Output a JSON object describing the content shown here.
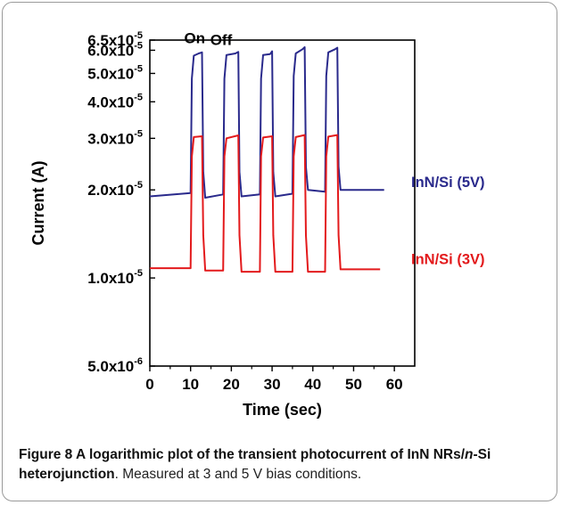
{
  "chart_data": {
    "type": "line",
    "xlabel": "Time (sec)",
    "ylabel": "Current (A)",
    "xlim": [
      0,
      65
    ],
    "ylim": [
      5e-06,
      6.5e-05
    ],
    "yscale": "log",
    "x_ticks": [
      0,
      10,
      20,
      30,
      40,
      50,
      60
    ],
    "y_ticks": [
      {
        "value": 5e-06,
        "mant": "5.0x10",
        "exp": "-6"
      },
      {
        "value": 1e-05,
        "mant": "1.0x10",
        "exp": "-5"
      },
      {
        "value": 2e-05,
        "mant": "2.0x10",
        "exp": "-5"
      },
      {
        "value": 3e-05,
        "mant": "3.0x10",
        "exp": "-5"
      },
      {
        "value": 4e-05,
        "mant": "4.0x10",
        "exp": "-5"
      },
      {
        "value": 5e-05,
        "mant": "5.0x10",
        "exp": "-5"
      },
      {
        "value": 6e-05,
        "mant": "6.0x10",
        "exp": "-5"
      },
      {
        "value": 6.5e-05,
        "mant": "6.5x10",
        "exp": "-5"
      }
    ],
    "annotations": [
      {
        "text": "On",
        "x": 11.0,
        "y": 6.35e-05
      },
      {
        "text": "Off",
        "x": 17.5,
        "y": 6.25e-05
      }
    ],
    "series": [
      {
        "name": "InN/Si (5V)",
        "color": "#2a2a8c",
        "x": [
          0,
          10,
          10.3,
          10.8,
          12.0,
          12.8,
          13.1,
          13.6,
          18.0,
          18.3,
          18.8,
          21.0,
          21.7,
          22.0,
          22.5,
          27.0,
          27.3,
          27.8,
          29.5,
          30.0,
          30.3,
          30.8,
          35.0,
          35.3,
          35.8,
          37.5,
          38.0,
          38.3,
          38.8,
          43.0,
          43.3,
          43.8,
          45.5,
          46.0,
          46.3,
          46.8,
          57.5
        ],
        "y": [
          1.9e-05,
          1.95e-05,
          4.8e-05,
          5.75e-05,
          5.85e-05,
          5.9e-05,
          2.3e-05,
          1.88e-05,
          1.93e-05,
          4.8e-05,
          5.78e-05,
          5.85e-05,
          5.92e-05,
          2.3e-05,
          1.9e-05,
          1.93e-05,
          4.8e-05,
          5.78e-05,
          5.82e-05,
          5.95e-05,
          2.3e-05,
          1.9e-05,
          1.94e-05,
          4.9e-05,
          5.85e-05,
          6.05e-05,
          6.15e-05,
          2.4e-05,
          2e-05,
          1.97e-05,
          4.9e-05,
          5.9e-05,
          6.05e-05,
          6.12e-05,
          2.4e-05,
          2e-05,
          2e-05
        ]
      },
      {
        "name": "InN/Si (3V)",
        "color": "#e31a1c",
        "x": [
          0,
          10,
          10.3,
          10.8,
          12.8,
          13.1,
          13.6,
          18.0,
          18.3,
          18.8,
          21.7,
          22.0,
          22.5,
          27.0,
          27.3,
          27.8,
          30.0,
          30.3,
          30.8,
          35.0,
          35.3,
          35.8,
          38.0,
          38.3,
          38.8,
          43.0,
          43.3,
          43.8,
          46.0,
          46.3,
          46.8,
          56.5
        ],
        "y": [
          1.08e-05,
          1.08e-05,
          2.6e-05,
          3.03e-05,
          3.05e-05,
          1.4e-05,
          1.06e-05,
          1.06e-05,
          2.6e-05,
          3e-05,
          3.07e-05,
          1.4e-05,
          1.05e-05,
          1.05e-05,
          2.6e-05,
          3.02e-05,
          3.05e-05,
          1.4e-05,
          1.05e-05,
          1.05e-05,
          2.6e-05,
          3.03e-05,
          3.08e-05,
          1.4e-05,
          1.05e-05,
          1.05e-05,
          2.6e-05,
          3.04e-05,
          3.08e-05,
          1.4e-05,
          1.07e-05,
          1.07e-05
        ]
      }
    ]
  },
  "caption": {
    "figure_label": "Figure 8",
    "title_part1": " A logarithmic plot of the transient photocurrent of InN NRs/",
    "title_italic": "n",
    "title_part2": "-Si heterojunction",
    "rest": ". Measured at 3 and 5 V bias conditions."
  }
}
